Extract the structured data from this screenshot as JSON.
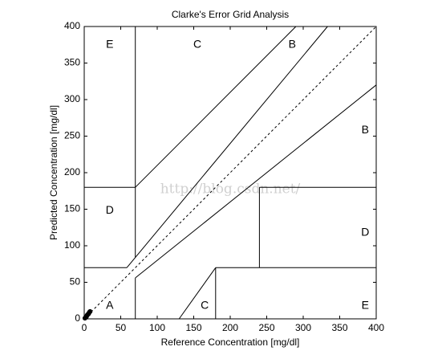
{
  "chart_data": {
    "type": "grid",
    "title": "Clarke's Error Grid Analysis",
    "x_label": "Reference Concentration [mg/dl]",
    "y_label": "Predicted Concentration [mg/dl]",
    "xlim": [
      0,
      400
    ],
    "ylim": [
      0,
      400
    ],
    "xticks": [
      0,
      50,
      100,
      150,
      200,
      250,
      300,
      350,
      400
    ],
    "yticks": [
      0,
      50,
      100,
      150,
      200,
      250,
      300,
      350,
      400
    ],
    "color": "#000000",
    "diagonal": {
      "x": [
        0,
        400
      ],
      "y": [
        0,
        400
      ]
    },
    "segments": [
      {
        "x": [
          0,
          58.33
        ],
        "y": [
          70,
          70
        ]
      },
      {
        "x": [
          58.33,
          333.33
        ],
        "y": [
          70,
          400
        ]
      },
      {
        "x": [
          70,
          70
        ],
        "y": [
          84,
          400
        ]
      },
      {
        "x": [
          0,
          70
        ],
        "y": [
          180,
          180
        ]
      },
      {
        "x": [
          70,
          290
        ],
        "y": [
          180,
          400
        ]
      },
      {
        "x": [
          70,
          70
        ],
        "y": [
          0,
          56
        ]
      },
      {
        "x": [
          70,
          400
        ],
        "y": [
          56,
          320
        ]
      },
      {
        "x": [
          180,
          180
        ],
        "y": [
          0,
          70
        ]
      },
      {
        "x": [
          180,
          400
        ],
        "y": [
          70,
          70
        ]
      },
      {
        "x": [
          240,
          240
        ],
        "y": [
          70,
          180
        ]
      },
      {
        "x": [
          240,
          400
        ],
        "y": [
          180,
          180
        ]
      },
      {
        "x": [
          130,
          180
        ],
        "y": [
          0,
          70
        ]
      }
    ],
    "annotations": [
      {
        "text": "E",
        "x": 35,
        "y": 375
      },
      {
        "text": "C",
        "x": 155,
        "y": 375
      },
      {
        "text": "B",
        "x": 285,
        "y": 375
      },
      {
        "text": "B",
        "x": 385,
        "y": 258
      },
      {
        "text": "D",
        "x": 35,
        "y": 148
      },
      {
        "text": "D",
        "x": 385,
        "y": 118
      },
      {
        "text": "A",
        "x": 35,
        "y": 18
      },
      {
        "text": "C",
        "x": 165,
        "y": 18
      },
      {
        "text": "E",
        "x": 385,
        "y": 18
      }
    ],
    "points": {
      "x": [
        1,
        2,
        3,
        4,
        5,
        6,
        7,
        8
      ],
      "y": [
        1,
        2,
        3,
        5,
        6,
        7,
        9,
        10
      ]
    },
    "watermark": "http://blog.csdn.net/"
  }
}
